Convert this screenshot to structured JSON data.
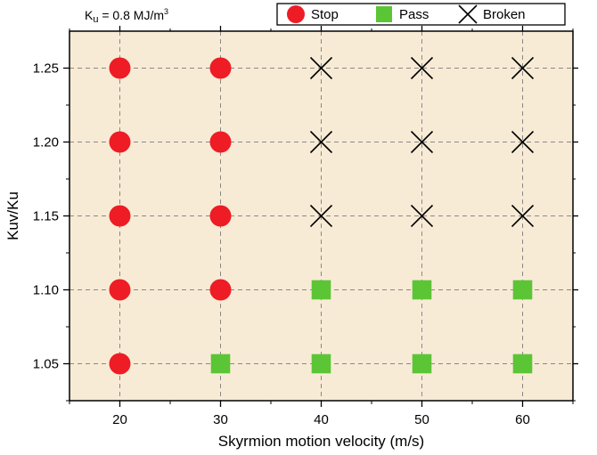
{
  "chart_data": {
    "type": "scatter",
    "xlabel": "Skyrmion motion velocity (m/s)",
    "ylabel": "Kuv/Ku",
    "xlim": [
      15,
      65
    ],
    "ylim": [
      1.025,
      1.275
    ],
    "xticks": [
      "20",
      "30",
      "40",
      "50",
      "60"
    ],
    "yticks": [
      "1.05",
      "1.10",
      "1.15",
      "1.20",
      "1.25"
    ],
    "grid": true,
    "legend_position": "top-right",
    "annotation": {
      "main": "K",
      "sub": "u",
      "rest": " = 0.8 MJ/m",
      "sup": "3"
    },
    "background": "#f8ebd6",
    "series": [
      {
        "name": "Stop",
        "marker": "circle",
        "color": "#ee1c24",
        "points": [
          [
            20,
            1.05
          ],
          [
            20,
            1.1
          ],
          [
            20,
            1.15
          ],
          [
            20,
            1.2
          ],
          [
            20,
            1.25
          ],
          [
            30,
            1.1
          ],
          [
            30,
            1.15
          ],
          [
            30,
            1.2
          ],
          [
            30,
            1.25
          ]
        ]
      },
      {
        "name": "Pass",
        "marker": "square",
        "color": "#5cc535",
        "points": [
          [
            30,
            1.05
          ],
          [
            40,
            1.05
          ],
          [
            50,
            1.05
          ],
          [
            60,
            1.05
          ],
          [
            40,
            1.1
          ],
          [
            50,
            1.1
          ],
          [
            60,
            1.1
          ]
        ]
      },
      {
        "name": "Broken",
        "marker": "cross",
        "color": "#000000",
        "points": [
          [
            40,
            1.15
          ],
          [
            50,
            1.15
          ],
          [
            60,
            1.15
          ],
          [
            40,
            1.2
          ],
          [
            50,
            1.2
          ],
          [
            60,
            1.2
          ],
          [
            40,
            1.25
          ],
          [
            50,
            1.25
          ],
          [
            60,
            1.25
          ]
        ]
      }
    ]
  }
}
